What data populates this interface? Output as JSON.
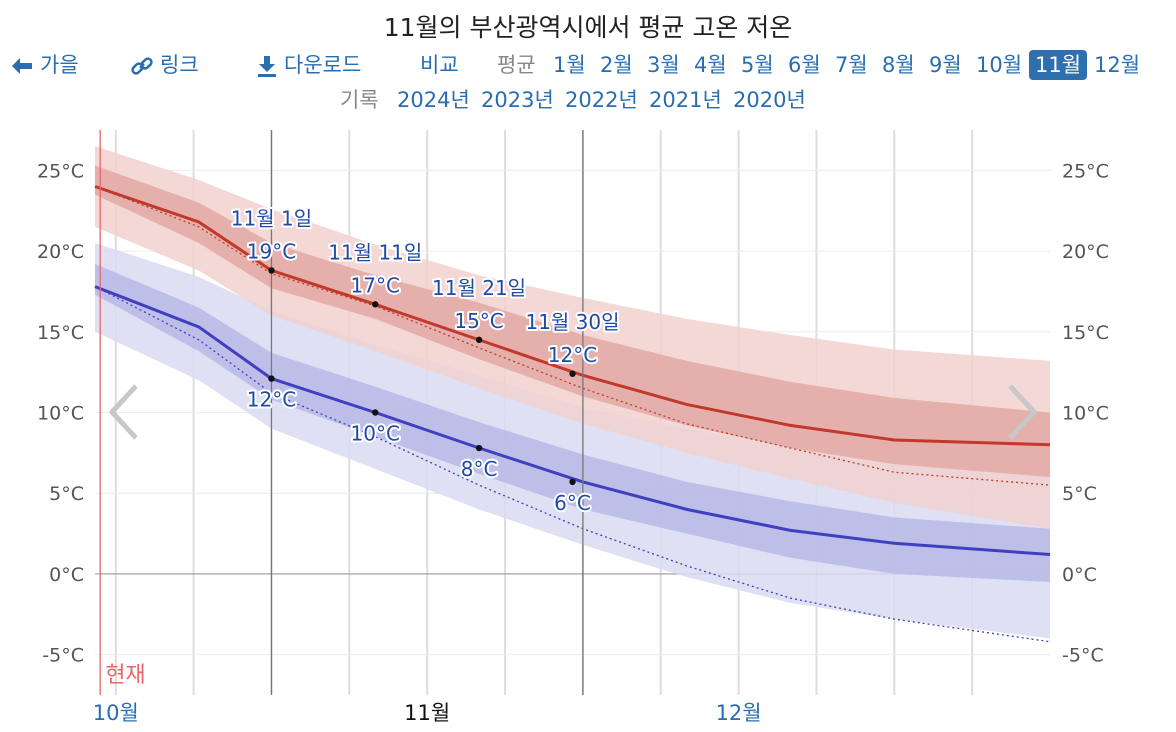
{
  "title": "11월의 부산광역시에서 평균 고온 저온",
  "nav": {
    "back": {
      "label": "가을",
      "icon": "arrow-left-icon"
    },
    "link": {
      "label": "링크",
      "icon": "link-icon"
    },
    "download": {
      "label": "다운로드",
      "icon": "download-icon"
    },
    "compare": "비교",
    "avg_label": "평균",
    "months": [
      "1월",
      "2월",
      "3월",
      "4월",
      "5월",
      "6월",
      "7월",
      "8월",
      "9월",
      "10월",
      "11월",
      "12월"
    ],
    "active_month": "11월"
  },
  "records": {
    "label": "기록",
    "years": [
      "2024년",
      "2023년",
      "2022년",
      "2021년",
      "2020년"
    ]
  },
  "chart_data": {
    "type": "area",
    "y_unit": "°C",
    "ylim": [
      -7.5,
      27.5
    ],
    "y_ticks": [
      "25°C",
      "20°C",
      "15°C",
      "10°C",
      "5°C",
      "0°C",
      "-5°C"
    ],
    "y_tick_values": [
      25,
      20,
      15,
      10,
      5,
      0,
      -5
    ],
    "x_domain_days": [
      -17,
      75
    ],
    "x_labels": [
      {
        "label": "10월",
        "day": -15
      },
      {
        "label": "11월",
        "day": 15,
        "current": true
      },
      {
        "label": "12월",
        "day": 45
      }
    ],
    "month_boundaries": [
      0,
      30
    ],
    "today": {
      "label": "현재",
      "day": -16.5
    },
    "days": [
      -17,
      -7,
      0,
      10,
      20,
      30,
      40,
      50,
      60,
      75
    ],
    "high": {
      "avg": [
        24.0,
        21.8,
        18.8,
        16.7,
        14.5,
        12.3,
        10.5,
        9.2,
        8.3,
        8.0
      ],
      "p25": [
        23.5,
        20.5,
        17.7,
        15.8,
        13.3,
        11.0,
        9.2,
        7.8,
        6.8,
        6.0
      ],
      "p75": [
        25.3,
        23.0,
        20.5,
        18.5,
        16.8,
        14.8,
        13.2,
        11.9,
        10.9,
        10.0
      ],
      "p10": [
        21.5,
        18.8,
        16.0,
        13.8,
        11.5,
        9.3,
        7.5,
        5.9,
        4.4,
        2.8
      ],
      "p90": [
        26.5,
        24.4,
        22.6,
        20.4,
        18.5,
        17.1,
        15.8,
        14.8,
        13.9,
        13.2
      ],
      "record_line": [
        24.0,
        21.5,
        18.6,
        16.6,
        14.0,
        11.5,
        9.3,
        7.8,
        6.3,
        5.5
      ]
    },
    "low": {
      "avg": [
        17.8,
        15.3,
        12.1,
        10.0,
        7.8,
        5.7,
        4.0,
        2.7,
        1.9,
        1.2
      ],
      "p25": [
        17.3,
        13.8,
        10.8,
        8.5,
        6.2,
        4.0,
        2.5,
        1.0,
        0.0,
        -0.5
      ],
      "p75": [
        19.2,
        16.5,
        13.7,
        11.6,
        9.4,
        7.4,
        5.7,
        4.5,
        3.5,
        2.8
      ],
      "p10": [
        15.0,
        12.0,
        9.0,
        6.5,
        4.0,
        1.8,
        -0.2,
        -1.8,
        -2.8,
        -4.0
      ],
      "p90": [
        20.5,
        18.4,
        16.3,
        14.2,
        12.3,
        10.3,
        9.0,
        7.8,
        6.8,
        6.0
      ],
      "record_line": [
        17.8,
        14.5,
        11.2,
        8.5,
        5.5,
        2.8,
        0.5,
        -1.5,
        -2.8,
        -4.2
      ]
    },
    "annotations": [
      {
        "date": "11월 1일",
        "day": 0,
        "high": "19°C",
        "high_value": 18.8,
        "low": "12°C",
        "low_value": 12.1
      },
      {
        "date": "11월 11일",
        "day": 10,
        "high": "17°C",
        "high_value": 16.7,
        "low": "10°C",
        "low_value": 10.0
      },
      {
        "date": "11월 21일",
        "day": 20,
        "high": "15°C",
        "high_value": 14.5,
        "low": "8°C",
        "low_value": 7.8
      },
      {
        "date": "11월 30일",
        "day": 29,
        "high": "12°C",
        "high_value": 12.4,
        "low": "6°C",
        "low_value": 5.7
      }
    ],
    "colors": {
      "high_line": "#c0392b",
      "high_band_inner": "#e2a9a5",
      "high_band_outer": "#f1d1cf",
      "low_line": "#3f3fbf",
      "low_band_inner": "#b7b8e6",
      "low_band_outer": "#dadbf2",
      "today": "#e8666a",
      "annotation_text": "#1f4aa5"
    }
  }
}
